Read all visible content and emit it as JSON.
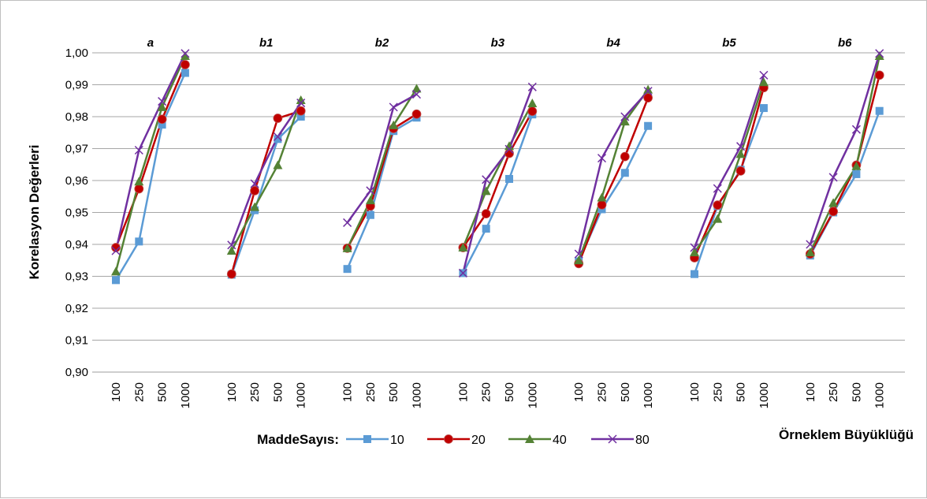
{
  "chart_data": {
    "type": "line",
    "ylabel": "Korelasyon Değerleri",
    "xlabel": "Örneklem Büyüklüğü",
    "ylim": [
      0.9,
      1.0
    ],
    "yticks": [
      "0,90",
      "0,91",
      "0,92",
      "0,93",
      "0,94",
      "0,95",
      "0,96",
      "0,97",
      "0,98",
      "0,99",
      "1,00"
    ],
    "grid": true,
    "legend_title": "MaddeSayıs:",
    "legend_position": "bottom",
    "categories": [
      "100",
      "250",
      "500",
      "1000"
    ],
    "panels": [
      {
        "title": "a",
        "series": [
          {
            "name": "10",
            "values": [
              0.9288,
              0.9409,
              0.9775,
              0.9937
            ]
          },
          {
            "name": "20",
            "values": [
              0.939,
              0.9574,
              0.9792,
              0.9963
            ]
          },
          {
            "name": "40",
            "values": [
              0.9315,
              0.9597,
              0.983,
              0.999
            ]
          },
          {
            "name": "80",
            "values": [
              0.938,
              0.9695,
              0.9848,
              0.9998
            ]
          }
        ]
      },
      {
        "title": "b1",
        "series": [
          {
            "name": "10",
            "values": [
              0.9305,
              0.9507,
              0.973,
              0.98
            ]
          },
          {
            "name": "20",
            "values": [
              0.9307,
              0.9568,
              0.9795,
              0.9818
            ]
          },
          {
            "name": "40",
            "values": [
              0.938,
              0.9517,
              0.9648,
              0.9852
            ]
          },
          {
            "name": "80",
            "values": [
              0.9398,
              0.959,
              0.9737,
              0.9843
            ]
          }
        ]
      },
      {
        "title": "b2",
        "series": [
          {
            "name": "10",
            "values": [
              0.9323,
              0.9492,
              0.9755,
              0.9797
            ]
          },
          {
            "name": "20",
            "values": [
              0.9388,
              0.952,
              0.9763,
              0.9808
            ]
          },
          {
            "name": "40",
            "values": [
              0.9388,
              0.9538,
              0.9773,
              0.9888
            ]
          },
          {
            "name": "80",
            "values": [
              0.9468,
              0.9568,
              0.983,
              0.987
            ]
          }
        ]
      },
      {
        "title": "b3",
        "series": [
          {
            "name": "10",
            "values": [
              0.931,
              0.9449,
              0.9605,
              0.9807
            ]
          },
          {
            "name": "20",
            "values": [
              0.939,
              0.9496,
              0.9685,
              0.9817
            ]
          },
          {
            "name": "40",
            "values": [
              0.939,
              0.9567,
              0.9708,
              0.9842
            ]
          },
          {
            "name": "80",
            "values": [
              0.931,
              0.9603,
              0.9698,
              0.9893
            ]
          }
        ]
      },
      {
        "title": "b4",
        "series": [
          {
            "name": "10",
            "values": [
              0.9347,
              0.951,
              0.9624,
              0.9771
            ]
          },
          {
            "name": "20",
            "values": [
              0.934,
              0.9524,
              0.9675,
              0.9859
            ]
          },
          {
            "name": "40",
            "values": [
              0.935,
              0.9547,
              0.9785,
              0.9885
            ]
          },
          {
            "name": "80",
            "values": [
              0.937,
              0.967,
              0.98,
              0.988
            ]
          }
        ]
      },
      {
        "title": "b5",
        "series": [
          {
            "name": "10",
            "values": [
              0.9307,
              0.952,
              0.9634,
              0.9827
            ]
          },
          {
            "name": "20",
            "values": [
              0.9358,
              0.9523,
              0.963,
              0.9891
            ]
          },
          {
            "name": "40",
            "values": [
              0.9375,
              0.948,
              0.9683,
              0.9908
            ]
          },
          {
            "name": "80",
            "values": [
              0.939,
              0.9575,
              0.9707,
              0.993
            ]
          }
        ]
      },
      {
        "title": "b6",
        "series": [
          {
            "name": "10",
            "values": [
              0.9365,
              0.95,
              0.962,
              0.9818
            ]
          },
          {
            "name": "20",
            "values": [
              0.937,
              0.9503,
              0.9648,
              0.993
            ]
          },
          {
            "name": "40",
            "values": [
              0.9375,
              0.953,
              0.9645,
              0.999
            ]
          },
          {
            "name": "80",
            "values": [
              0.94,
              0.961,
              0.976,
              0.9998
            ]
          }
        ]
      }
    ],
    "series_styles": [
      {
        "name": "10",
        "color": "#5B9BD5",
        "marker": "square"
      },
      {
        "name": "20",
        "color": "#C00000",
        "marker": "circle"
      },
      {
        "name": "40",
        "color": "#548235",
        "marker": "triangle"
      },
      {
        "name": "80",
        "color": "#7030A0",
        "marker": "x"
      }
    ]
  }
}
